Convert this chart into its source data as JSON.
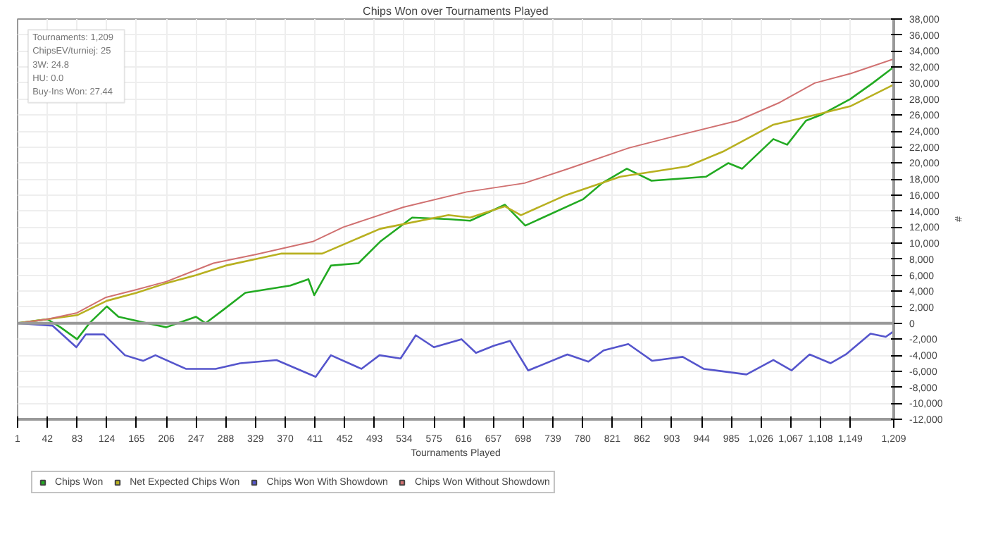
{
  "chart_data": {
    "type": "line",
    "title": "Chips Won over Tournaments Played",
    "xlabel": "Tournaments Played",
    "ylabel": "#",
    "annotations": [
      "Tournaments: 1,209",
      "ChipsEV/turniej: 25",
      "3W: 24.8",
      "HU: 0.0",
      "Buy-Ins Won: 27.44"
    ],
    "xlim": [
      1,
      1209
    ],
    "xticks": [
      1,
      42,
      83,
      124,
      165,
      206,
      247,
      288,
      329,
      370,
      411,
      452,
      493,
      534,
      575,
      616,
      657,
      698,
      739,
      780,
      821,
      862,
      903,
      944,
      985,
      {
        "value": 1026,
        "label": "1,026"
      },
      {
        "value": 1067,
        "label": "1,067"
      },
      {
        "value": 1108,
        "label": "1,108"
      },
      {
        "value": 1149,
        "label": "1,149"
      },
      {
        "value": 1209,
        "label": "1,209"
      }
    ],
    "ylim": [
      -12000,
      38000
    ],
    "yticks": [
      {
        "value": -12000,
        "label": "-12,000"
      },
      {
        "value": -10000,
        "label": "-10,000"
      },
      {
        "value": -8000,
        "label": "-8,000"
      },
      {
        "value": -6000,
        "label": "-6,000"
      },
      {
        "value": -4000,
        "label": "-4,000"
      },
      {
        "value": -2000,
        "label": "-2,000"
      },
      0,
      {
        "value": 2000,
        "label": "2,000"
      },
      {
        "value": 4000,
        "label": "4,000"
      },
      {
        "value": 6000,
        "label": "6,000"
      },
      {
        "value": 8000,
        "label": "8,000"
      },
      {
        "value": 10000,
        "label": "10,000"
      },
      {
        "value": 12000,
        "label": "12,000"
      },
      {
        "value": 14000,
        "label": "14,000"
      },
      {
        "value": 16000,
        "label": "16,000"
      },
      {
        "value": 18000,
        "label": "18,000"
      },
      {
        "value": 20000,
        "label": "20,000"
      },
      {
        "value": 22000,
        "label": "22,000"
      },
      {
        "value": 24000,
        "label": "24,000"
      },
      {
        "value": 26000,
        "label": "26,000"
      },
      {
        "value": 28000,
        "label": "28,000"
      },
      {
        "value": 30000,
        "label": "30,000"
      },
      {
        "value": 32000,
        "label": "32,000"
      },
      {
        "value": 34000,
        "label": "34,000"
      },
      {
        "value": 36000,
        "label": "36,000"
      },
      {
        "value": 38000,
        "label": "38,000"
      }
    ],
    "ref_lines": [
      {
        "axis": "y",
        "value": 0,
        "label": null,
        "color": "#999999"
      }
    ],
    "grid": true,
    "legend": "bottom",
    "marker": "none",
    "line_style": "solid",
    "series": [
      {
        "name": "Chips Won",
        "color": "#22aa22",
        "x": [
          1,
          42,
          60,
          83,
          100,
          124,
          140,
          180,
          206,
          247,
          260,
          285,
          315,
          377,
          402,
          410,
          433,
          471,
          501,
          545,
          595,
          625,
          673,
          701,
          781,
          807,
          841,
          875,
          950,
          981,
          1000,
          1043,
          1062,
          1088,
          1108,
          1149,
          1180,
          1209
        ],
        "values": [
          0,
          500,
          -500,
          -2000,
          0,
          2100,
          800,
          0,
          -500,
          800,
          0,
          1700,
          3800,
          4700,
          5500,
          3500,
          7200,
          7500,
          10200,
          13200,
          13000,
          12800,
          14800,
          12200,
          15500,
          17500,
          19300,
          17800,
          18300,
          20000,
          19300,
          23000,
          22300,
          25300,
          26000,
          28000,
          30000,
          32000
        ]
      },
      {
        "name": "Net Expected Chips Won",
        "color": "#b8b020",
        "x": [
          1,
          42,
          83,
          124,
          165,
          206,
          247,
          288,
          329,
          365,
          421,
          501,
          595,
          625,
          673,
          695,
          757,
          832,
          925,
          975,
          1043,
          1100,
          1149,
          1209
        ],
        "values": [
          0,
          500,
          1000,
          2800,
          3800,
          5000,
          6000,
          7200,
          8000,
          8700,
          8700,
          11800,
          13500,
          13200,
          14600,
          13500,
          16000,
          18300,
          19600,
          21500,
          24800,
          26000,
          27100,
          29800
        ]
      },
      {
        "name": "Chips Won With Showdown",
        "color": "#5555cc",
        "x": [
          1,
          49,
          82,
          95,
          120,
          149,
          174,
          191,
          233,
          274,
          308,
          358,
          412,
          433,
          475,
          500,
          529,
          550,
          575,
          613,
          633,
          658,
          680,
          705,
          759,
          788,
          809,
          843,
          876,
          918,
          947,
          1006,
          1043,
          1068,
          1093,
          1122,
          1143,
          1177,
          1198,
          1209
        ],
        "values": [
          0,
          -300,
          -3000,
          -1400,
          -1400,
          -4000,
          -4700,
          -4000,
          -5700,
          -5700,
          -5000,
          -4600,
          -6700,
          -4000,
          -5700,
          -4000,
          -4400,
          -1500,
          -3000,
          -2000,
          -3700,
          -2800,
          -2200,
          -5900,
          -3900,
          -4800,
          -3400,
          -2600,
          -4700,
          -4200,
          -5700,
          -6400,
          -4600,
          -5900,
          -3900,
          -5000,
          -3900,
          -1300,
          -1700,
          -1000
        ]
      },
      {
        "name": "Chips Won Without Showdown",
        "color": "#d07070",
        "x": [
          1,
          42,
          83,
          122,
          165,
          206,
          271,
          330,
          408,
          450,
          533,
          620,
          700,
          760,
          844,
          900,
          994,
          1050,
          1100,
          1150,
          1209
        ],
        "values": [
          0,
          500,
          1300,
          3200,
          4200,
          5200,
          7500,
          8600,
          10200,
          12000,
          14500,
          16400,
          17500,
          19300,
          21900,
          23200,
          25300,
          27500,
          30000,
          31200,
          33000
        ]
      }
    ]
  }
}
